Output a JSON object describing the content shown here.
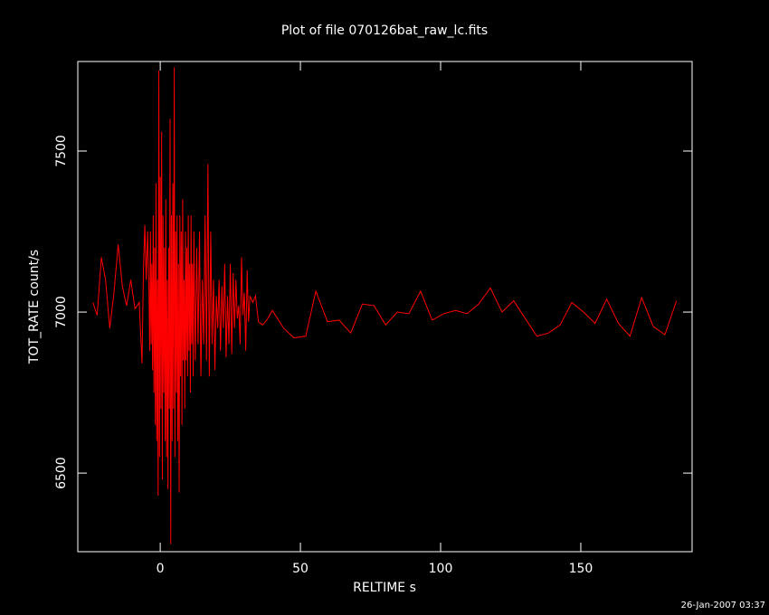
{
  "chart_data": {
    "type": "line",
    "title": "Plot of file 070126bat_raw_lc.fits",
    "xlabel": "RELTIME   s",
    "ylabel": "TOT_RATE   count/s",
    "annotation": "26-Jan-2007 03:37",
    "color": "#ff0000",
    "xlim": [
      -29.4,
      189.7
    ],
    "xticks": [
      0,
      50,
      100,
      150
    ],
    "ylim": [
      6256,
      7778
    ],
    "yticks": [
      6500,
      7000,
      7500
    ],
    "x": [
      -24,
      -22.5,
      -21,
      -19.5,
      -18,
      -16.5,
      -15,
      -13.5,
      -12,
      -10.5,
      -9,
      -7.5,
      -6.5,
      -6,
      -5.5,
      -5,
      -4.5,
      -4,
      -3.75,
      -3.5,
      -3.25,
      -3,
      -2.75,
      -2.5,
      -2.25,
      -2,
      -1.75,
      -1.5,
      -1.25,
      -1,
      -0.75,
      -0.5,
      -0.25,
      0,
      0.25,
      0.5,
      0.75,
      1,
      1.25,
      1.5,
      1.75,
      2,
      2.25,
      2.5,
      2.75,
      3,
      3.25,
      3.5,
      3.75,
      4,
      4.25,
      4.5,
      4.75,
      5,
      5.25,
      5.5,
      5.75,
      6,
      6.25,
      6.5,
      6.75,
      7,
      7.25,
      7.5,
      7.75,
      8,
      8.25,
      8.5,
      8.75,
      9,
      9.25,
      9.5,
      9.75,
      10,
      10.25,
      10.5,
      10.75,
      11,
      11.25,
      11.5,
      11.75,
      12,
      12.5,
      13,
      13.5,
      14,
      14.5,
      15,
      15.5,
      16,
      16.5,
      17,
      17.5,
      18,
      18.5,
      19,
      19.5,
      20,
      20.5,
      21,
      21.5,
      22,
      22.5,
      23,
      23.5,
      24,
      24.5,
      25,
      25.5,
      26,
      26.5,
      27,
      27.5,
      28,
      28.5,
      29,
      29.5,
      30,
      30.5,
      31,
      31.5,
      32,
      33,
      34,
      35,
      36.5,
      38,
      40,
      44,
      47.7,
      51.9,
      55.5,
      59.65,
      63.8,
      67.95,
      72.1,
      76.25,
      80.4,
      84.55,
      88.7,
      92.85,
      97,
      101.15,
      105.3,
      109.45,
      113.6,
      117.75,
      121.9,
      126.05,
      130.2,
      134.35,
      138.5,
      142.65,
      146.8,
      150.95,
      155.1,
      159.25,
      163.4,
      167.55,
      171.7,
      175.85,
      180,
      184.15
    ],
    "values": [
      7030,
      6990,
      7170,
      7100,
      6950,
      7060,
      7210,
      7080,
      7020,
      7100,
      7010,
      7030,
      6840,
      7130,
      7270,
      7100,
      7250,
      7050,
      6880,
      7250,
      6900,
      7150,
      6820,
      7300,
      6750,
      7200,
      6650,
      7400,
      6600,
      7100,
      6430,
      7750,
      6550,
      7420,
      6700,
      7560,
      6480,
      7300,
      6750,
      7200,
      6600,
      7350,
      6550,
      7100,
      6450,
      7200,
      6700,
      7600,
      6280,
      7300,
      6600,
      7400,
      6700,
      7760,
      6550,
      7250,
      6750,
      7300,
      6600,
      7150,
      6440,
      7300,
      6800,
      7250,
      6650,
      7350,
      6850,
      7100,
      6700,
      7250,
      6850,
      7200,
      6800,
      7300,
      6880,
      7150,
      6750,
      7300,
      6900,
      7150,
      6800,
      7250,
      6850,
      7200,
      6900,
      7250,
      6800,
      7100,
      6900,
      7300,
      6850,
      7460,
      6800,
      7250,
      6900,
      7100,
      6820,
      7050,
      6950,
      7100,
      6880,
      7080,
      6950,
      7150,
      6860,
      7050,
      6900,
      7150,
      6870,
      7120,
      6950,
      7100,
      6980,
      7020,
      6900,
      7170,
      6990,
      7060,
      6880,
      7130,
      6970,
      7050,
      7030,
      7050,
      6970,
      6960,
      6975,
      7005,
      6950,
      6920,
      6925,
      7065,
      6970,
      6975,
      6935,
      7025,
      7020,
      6960,
      7000,
      6995,
      7065,
      6975,
      6995,
      7005,
      6995,
      7025,
      7075,
      7000,
      7035,
      6980,
      6925,
      6935,
      6960,
      7030,
      7000,
      6965,
      7040,
      6965,
      6925,
      7045,
      6955,
      6930,
      7035
    ]
  }
}
